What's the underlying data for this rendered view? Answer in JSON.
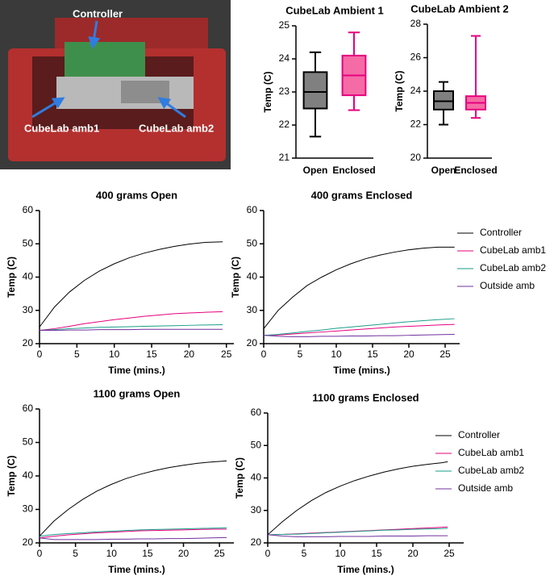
{
  "photo": {
    "labels": [
      "Controller",
      "CubeLab amb1",
      "CubeLab amb2"
    ]
  },
  "chart_data": [
    {
      "type": "box",
      "title": "CubeLab Ambient 1",
      "y_label": "Temp (C)",
      "categories": [
        "Open",
        "Enclosed"
      ],
      "boxes": [
        {
          "min": 21.65,
          "q1": 22.5,
          "median": 23.0,
          "q3": 23.6,
          "max": 24.2
        },
        {
          "min": 22.45,
          "q1": 22.9,
          "median": 23.5,
          "q3": 24.1,
          "max": 24.8
        }
      ],
      "colors": [
        "#808080",
        "#f56ba6"
      ],
      "edge_colors": [
        "#000000",
        "#e6007e"
      ],
      "ylim": [
        21,
        25
      ],
      "yticks": [
        21,
        22,
        23,
        24,
        25
      ]
    },
    {
      "type": "box",
      "title": "CubeLab Ambient 2",
      "y_label": "Temp (C)",
      "categories": [
        "Open",
        "Enclosed"
      ],
      "boxes": [
        {
          "min": 22.0,
          "q1": 22.9,
          "median": 23.4,
          "q3": 24.0,
          "max": 24.55
        },
        {
          "min": 22.4,
          "q1": 22.9,
          "median": 23.3,
          "q3": 23.7,
          "max": 27.3
        }
      ],
      "colors": [
        "#808080",
        "#f56ba6"
      ],
      "edge_colors": [
        "#000000",
        "#e6007e"
      ],
      "ylim": [
        20,
        28
      ],
      "yticks": [
        20,
        22,
        24,
        26,
        28
      ]
    },
    {
      "type": "line",
      "title": "400 grams Open",
      "x_label": "Time (mins.)",
      "y_label": "Temp (C)",
      "x": [
        0,
        2,
        4,
        6,
        8,
        10,
        12,
        14,
        16,
        18,
        20,
        22,
        24.5
      ],
      "series": [
        {
          "name": "Controller",
          "color": "#000000",
          "values": [
            25,
            31,
            35.5,
            39,
            41.8,
            44,
            45.8,
            47.2,
            48.3,
            49.2,
            49.9,
            50.4,
            50.6
          ]
        },
        {
          "name": "CubeLab amb1",
          "color": "#e6007e",
          "values": [
            24,
            24.5,
            25.2,
            26,
            26.6,
            27.2,
            27.7,
            28.2,
            28.6,
            29,
            29.2,
            29.4,
            29.6
          ]
        },
        {
          "name": "CubeLab amb2",
          "color": "#1a9e8a",
          "values": [
            24,
            24.2,
            24.5,
            24.7,
            24.9,
            25.0,
            25.1,
            25.2,
            25.3,
            25.4,
            25.5,
            25.6,
            25.7
          ]
        },
        {
          "name": "Outside amb",
          "color": "#7030a0",
          "values": [
            24,
            24,
            24.1,
            24.1,
            24.2,
            24.2,
            24.2,
            24.3,
            24.3,
            24.3,
            24.3,
            24.3,
            24.3
          ]
        }
      ],
      "xlim": [
        0,
        26
      ],
      "xticks": [
        0,
        5,
        10,
        15,
        20,
        25
      ],
      "ylim": [
        20,
        60
      ],
      "yticks": [
        20,
        30,
        40,
        50,
        60
      ]
    },
    {
      "type": "line",
      "title": "400 grams Enclosed",
      "x_label": "Time (mins.)",
      "y_label": "Temp (C)",
      "legend": "right",
      "x": [
        0,
        2,
        4,
        6,
        8,
        10,
        12,
        14,
        16,
        18,
        20,
        22,
        24,
        26.3
      ],
      "series": [
        {
          "name": "Controller",
          "color": "#000000",
          "values": [
            24.5,
            30,
            34,
            37.5,
            40,
            42.2,
            44,
            45.5,
            46.6,
            47.5,
            48.2,
            48.7,
            49,
            49
          ]
        },
        {
          "name": "CubeLab amb1",
          "color": "#e6007e",
          "values": [
            22.5,
            22.6,
            22.9,
            23.2,
            23.5,
            23.8,
            24.1,
            24.4,
            24.7,
            25,
            25.2,
            25.4,
            25.6,
            25.8
          ]
        },
        {
          "name": "CubeLab amb2",
          "color": "#1a9e8a",
          "values": [
            22.5,
            22.8,
            23.2,
            23.7,
            24.1,
            24.6,
            25,
            25.4,
            25.8,
            26.2,
            26.6,
            26.9,
            27.2,
            27.5
          ]
        },
        {
          "name": "Outside amb",
          "color": "#7030a0",
          "values": [
            22.5,
            22.2,
            22.1,
            22.1,
            22.2,
            22.2,
            22.3,
            22.3,
            22.4,
            22.4,
            22.5,
            22.6,
            22.7,
            22.8
          ]
        }
      ],
      "xlim": [
        0,
        27
      ],
      "xticks": [
        0,
        5,
        10,
        15,
        20,
        25
      ],
      "ylim": [
        20,
        60
      ],
      "yticks": [
        20,
        30,
        40,
        50,
        60
      ]
    },
    {
      "type": "line",
      "title": "1100 grams Open",
      "x_label": "Time (mins.)",
      "y_label": "Temp (C)",
      "x": [
        0,
        2,
        4,
        6,
        8,
        10,
        12,
        14,
        16,
        18,
        20,
        22,
        24,
        26
      ],
      "series": [
        {
          "name": "Controller",
          "color": "#000000",
          "values": [
            22,
            26.5,
            30,
            33,
            35.5,
            37.5,
            39.2,
            40.5,
            41.6,
            42.5,
            43.2,
            43.8,
            44.2,
            44.5
          ]
        },
        {
          "name": "CubeLab amb1",
          "color": "#e6007e",
          "values": [
            21.5,
            22,
            22.4,
            22.7,
            23,
            23.2,
            23.4,
            23.6,
            23.7,
            23.8,
            23.9,
            24,
            24.1,
            24.1
          ]
        },
        {
          "name": "CubeLab amb2",
          "color": "#1a9e8a",
          "values": [
            22,
            22.5,
            22.8,
            23,
            23.3,
            23.5,
            23.7,
            23.9,
            24,
            24.1,
            24.2,
            24.3,
            24.4,
            24.5
          ]
        },
        {
          "name": "Outside amb",
          "color": "#7030a0",
          "values": [
            21.5,
            21,
            21,
            21,
            21,
            21.1,
            21.1,
            21.2,
            21.2,
            21.3,
            21.3,
            21.4,
            21.5,
            21.6
          ]
        }
      ],
      "xlim": [
        0,
        27
      ],
      "xticks": [
        0,
        5,
        10,
        15,
        20,
        25
      ],
      "ylim": [
        20,
        60
      ],
      "yticks": [
        20,
        30,
        40,
        50,
        60
      ]
    },
    {
      "type": "line",
      "title": "1100 grams Enclosed",
      "x_label": "Time (mins.)",
      "y_label": "Temp (C)",
      "legend": "right",
      "x": [
        0,
        2,
        4,
        6,
        8,
        10,
        12,
        14,
        16,
        18,
        20,
        22,
        24,
        24.8
      ],
      "series": [
        {
          "name": "Controller",
          "color": "#000000",
          "values": [
            22.5,
            26.5,
            30,
            33,
            35.5,
            37.5,
            39.2,
            40.6,
            41.8,
            42.8,
            43.6,
            44.2,
            44.7,
            45
          ]
        },
        {
          "name": "CubeLab amb1",
          "color": "#e6007e",
          "values": [
            22.5,
            22.6,
            22.8,
            23,
            23.2,
            23.4,
            23.6,
            23.8,
            24,
            24.2,
            24.4,
            24.6,
            24.8,
            24.9
          ]
        },
        {
          "name": "CubeLab amb2",
          "color": "#1a9e8a",
          "values": [
            22.5,
            22.6,
            22.7,
            22.9,
            23.1,
            23.3,
            23.5,
            23.7,
            23.9,
            24,
            24.2,
            24.3,
            24.4,
            24.5
          ]
        },
        {
          "name": "Outside amb",
          "color": "#7030a0",
          "values": [
            22.5,
            22.1,
            21.9,
            21.9,
            21.9,
            22,
            22,
            22,
            22.1,
            22.1,
            22.1,
            22.2,
            22.2,
            22.2
          ]
        }
      ],
      "xlim": [
        0,
        27
      ],
      "xticks": [
        0,
        5,
        10,
        15,
        20,
        25
      ],
      "ylim": [
        20,
        60
      ],
      "yticks": [
        20,
        30,
        40,
        50,
        60
      ]
    }
  ]
}
